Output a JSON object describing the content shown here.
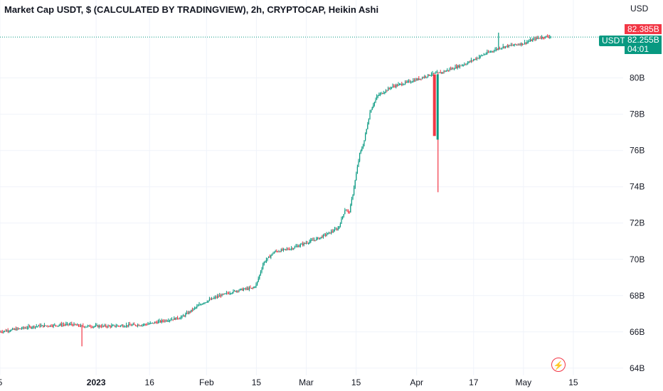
{
  "header": {
    "title": "Market Cap USDT, $ (CALCULATED BY TRADINGVIEW), 2h, CRYPTOCAP, Heikin Ashi",
    "currency": "USD"
  },
  "price_tags": {
    "symbol": "USDT",
    "last_price": "82.385B",
    "current_price": "82.255B",
    "countdown": "04:01"
  },
  "colors": {
    "up": "#089981",
    "down": "#f23645",
    "grid": "#f0f3fa",
    "text": "#131722",
    "tag_green": "#089981",
    "tag_red": "#f23645"
  },
  "icons": {
    "alert": "lightning-icon"
  },
  "chart_data": {
    "type": "line",
    "title": "Market Cap USDT, $ (CALCULATED BY TRADINGVIEW), 2h, CRYPTOCAP, Heikin Ashi",
    "xlabel": "",
    "ylabel": "",
    "y_unit": "USD (billions)",
    "ylim": [
      63.6,
      84.3
    ],
    "x_range": [
      "2022-12-05",
      "2023-05-29"
    ],
    "y_ticks": [
      {
        "value": 64,
        "label": "64B"
      },
      {
        "value": 66,
        "label": "66B"
      },
      {
        "value": 68,
        "label": "68B"
      },
      {
        "value": 70,
        "label": "70B"
      },
      {
        "value": 72,
        "label": "72B"
      },
      {
        "value": 74,
        "label": "74B"
      },
      {
        "value": 76,
        "label": "76B"
      },
      {
        "value": 78,
        "label": "78B"
      },
      {
        "value": 80,
        "label": "80B"
      }
    ],
    "x_ticks": [
      {
        "date": "2022-12-05",
        "label": "5",
        "bold": false
      },
      {
        "date": "2023-01-01",
        "label": "2023",
        "bold": true
      },
      {
        "date": "2023-01-16",
        "label": "16",
        "bold": false
      },
      {
        "date": "2023-02-01",
        "label": "Feb",
        "bold": false
      },
      {
        "date": "2023-02-15",
        "label": "15",
        "bold": false
      },
      {
        "date": "2023-03-01",
        "label": "Mar",
        "bold": false
      },
      {
        "date": "2023-03-15",
        "label": "15",
        "bold": false
      },
      {
        "date": "2023-04-01",
        "label": "Apr",
        "bold": false
      },
      {
        "date": "2023-04-17",
        "label": "17",
        "bold": false
      },
      {
        "date": "2023-05-01",
        "label": "May",
        "bold": false
      },
      {
        "date": "2023-05-15",
        "label": "15",
        "bold": false
      }
    ],
    "series": [
      {
        "x": [
          "2022-12-05",
          "2022-12-15",
          "2022-12-25",
          "2022-12-28",
          "2023-01-05",
          "2023-01-15",
          "2023-01-20",
          "2023-01-25",
          "2023-01-31",
          "2023-02-05",
          "2023-02-10",
          "2023-02-14",
          "2023-02-15",
          "2023-02-17",
          "2023-02-20",
          "2023-02-25",
          "2023-03-01",
          "2023-03-05",
          "2023-03-10",
          "2023-03-12",
          "2023-03-13",
          "2023-03-14",
          "2023-03-16",
          "2023-03-17",
          "2023-03-19",
          "2023-03-21",
          "2023-03-25",
          "2023-04-01",
          "2023-04-05",
          "2023-04-08",
          "2023-04-15",
          "2023-04-20",
          "2023-04-25",
          "2023-05-01",
          "2023-05-05",
          "2023-05-09"
        ],
        "values": [
          66.0,
          66.3,
          66.4,
          66.3,
          66.3,
          66.4,
          66.6,
          66.8,
          67.6,
          68.0,
          68.3,
          68.4,
          68.6,
          69.8,
          70.4,
          70.6,
          70.9,
          71.2,
          71.7,
          72.8,
          72.5,
          73.5,
          75.8,
          76.3,
          78.2,
          79.0,
          79.5,
          79.9,
          80.2,
          80.3,
          80.8,
          81.3,
          81.7,
          81.9,
          82.2,
          82.3
        ]
      }
    ],
    "annotations": [
      {
        "type": "wick_low",
        "x": "2022-12-28",
        "y": 65.2
      },
      {
        "type": "wick_low",
        "x": "2023-04-07",
        "y": 73.7
      },
      {
        "type": "wick_high",
        "x": "2023-04-24",
        "y": 82.5
      },
      {
        "type": "horizontal_line",
        "y": 82.255
      }
    ],
    "grid": true
  }
}
